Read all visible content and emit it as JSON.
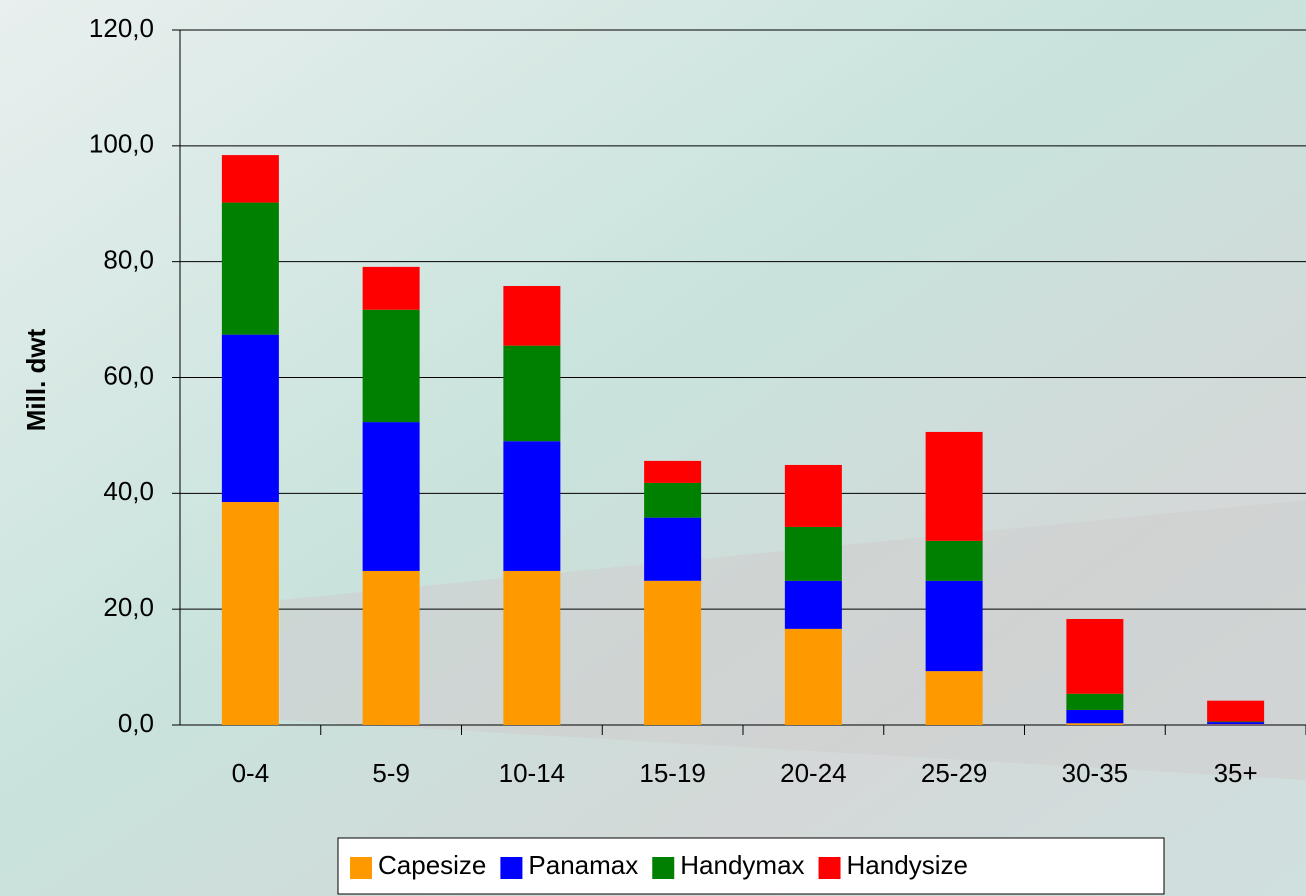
{
  "chart_data": {
    "type": "bar",
    "stacked": true,
    "ylabel": "Mill. dwt",
    "categories": [
      "0-4",
      "5-9",
      "10-14",
      "15-19",
      "20-24",
      "25-29",
      "30-35",
      "35+"
    ],
    "series": [
      {
        "name": "Capesize",
        "color": "#ff9900",
        "values": [
          38.5,
          26.6,
          26.6,
          24.9,
          16.6,
          9.3,
          0.3,
          0.1
        ]
      },
      {
        "name": "Panamax",
        "color": "#0000ff",
        "values": [
          28.9,
          25.7,
          22.4,
          10.9,
          8.3,
          15.6,
          2.3,
          0.4
        ]
      },
      {
        "name": "Handymax",
        "color": "#008000",
        "values": [
          22.8,
          19.4,
          16.5,
          6.0,
          9.3,
          6.9,
          2.8,
          0.1
        ]
      },
      {
        "name": "Handysize",
        "color": "#ff0000",
        "values": [
          8.2,
          7.4,
          10.3,
          3.8,
          10.7,
          18.8,
          12.9,
          3.6
        ]
      }
    ],
    "ylim": [
      0,
      120
    ],
    "yticks": [
      {
        "value": 0,
        "label": "0,0"
      },
      {
        "value": 20,
        "label": "20,0"
      },
      {
        "value": 40,
        "label": "40,0"
      },
      {
        "value": 60,
        "label": "60,0"
      },
      {
        "value": 80,
        "label": "80,0"
      },
      {
        "value": 100,
        "label": "100,0"
      },
      {
        "value": 120,
        "label": "120,0"
      }
    ],
    "grid": true,
    "legend": "bottom"
  }
}
